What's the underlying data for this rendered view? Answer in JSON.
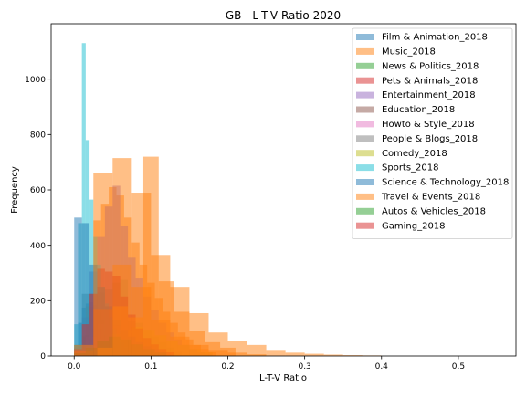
{
  "chart_data": {
    "type": "histogram",
    "title": "GB - L-T-V Ratio 2020",
    "xlabel": "L-T-V Ratio",
    "ylabel": "Frequency",
    "xlim": [
      -0.03,
      0.575
    ],
    "ylim": [
      0,
      1200
    ],
    "xticks": [
      "0.0",
      "0.1",
      "0.2",
      "0.3",
      "0.4",
      "0.5"
    ],
    "yticks": [
      "0",
      "200",
      "400",
      "600",
      "800",
      "1000"
    ],
    "grid": false,
    "legend_position": "top-right",
    "series": [
      {
        "name": "Film & Animation_2018",
        "color": "#1f77b4",
        "bins": [
          [
            0.0,
            0.005,
            25
          ],
          [
            0.005,
            0.01,
            120
          ],
          [
            0.01,
            0.015,
            175
          ],
          [
            0.015,
            0.02,
            190
          ],
          [
            0.02,
            0.025,
            195
          ],
          [
            0.025,
            0.03,
            185
          ],
          [
            0.03,
            0.035,
            160
          ],
          [
            0.035,
            0.04,
            130
          ],
          [
            0.04,
            0.045,
            100
          ],
          [
            0.045,
            0.05,
            75
          ],
          [
            0.05,
            0.055,
            50
          ],
          [
            0.055,
            0.06,
            35
          ],
          [
            0.06,
            0.065,
            22
          ],
          [
            0.065,
            0.07,
            12
          ]
        ]
      },
      {
        "name": "Music_2018",
        "color": "#ff7f0e",
        "bins": [
          [
            0.005,
            0.015,
            15
          ],
          [
            0.015,
            0.025,
            180
          ],
          [
            0.025,
            0.035,
            490
          ],
          [
            0.035,
            0.045,
            550
          ],
          [
            0.045,
            0.055,
            610
          ],
          [
            0.055,
            0.065,
            580
          ],
          [
            0.065,
            0.075,
            500
          ],
          [
            0.075,
            0.085,
            410
          ],
          [
            0.085,
            0.095,
            330
          ],
          [
            0.095,
            0.105,
            265
          ],
          [
            0.105,
            0.115,
            210
          ],
          [
            0.115,
            0.125,
            160
          ],
          [
            0.125,
            0.135,
            120
          ],
          [
            0.135,
            0.145,
            85
          ],
          [
            0.145,
            0.155,
            60
          ],
          [
            0.155,
            0.165,
            40
          ],
          [
            0.165,
            0.175,
            25
          ],
          [
            0.175,
            0.185,
            15
          ]
        ]
      },
      {
        "name": "News & Politics_2018",
        "color": "#2ca02c",
        "bins": [
          [
            0.0,
            0.01,
            40
          ],
          [
            0.01,
            0.02,
            75
          ],
          [
            0.02,
            0.03,
            60
          ],
          [
            0.03,
            0.04,
            40
          ],
          [
            0.04,
            0.05,
            25
          ],
          [
            0.05,
            0.06,
            12
          ],
          [
            0.06,
            0.07,
            5
          ]
        ]
      },
      {
        "name": "Pets & Animals_2018",
        "color": "#d62728",
        "bins": [
          [
            0.0,
            0.015,
            15
          ],
          [
            0.015,
            0.03,
            50
          ],
          [
            0.03,
            0.045,
            75
          ],
          [
            0.045,
            0.06,
            80
          ],
          [
            0.06,
            0.075,
            55
          ],
          [
            0.075,
            0.09,
            30
          ],
          [
            0.09,
            0.105,
            12
          ],
          [
            0.105,
            0.12,
            5
          ]
        ]
      },
      {
        "name": "Entertainment_2018",
        "color": "#9467bd",
        "bins": [
          [
            0.0,
            0.01,
            30
          ],
          [
            0.01,
            0.02,
            140
          ],
          [
            0.02,
            0.03,
            305
          ],
          [
            0.03,
            0.04,
            430
          ],
          [
            0.04,
            0.05,
            540
          ],
          [
            0.05,
            0.06,
            615
          ],
          [
            0.06,
            0.07,
            470
          ],
          [
            0.07,
            0.08,
            355
          ],
          [
            0.08,
            0.09,
            280
          ],
          [
            0.09,
            0.1,
            215
          ],
          [
            0.1,
            0.11,
            165
          ],
          [
            0.11,
            0.12,
            120
          ],
          [
            0.12,
            0.13,
            85
          ],
          [
            0.13,
            0.14,
            60
          ],
          [
            0.14,
            0.15,
            40
          ],
          [
            0.15,
            0.16,
            25
          ],
          [
            0.16,
            0.17,
            15
          ],
          [
            0.17,
            0.18,
            8
          ]
        ]
      },
      {
        "name": "Education_2018",
        "color": "#8c564b",
        "bins": [
          [
            0.0,
            0.012,
            20
          ],
          [
            0.012,
            0.024,
            70
          ],
          [
            0.024,
            0.036,
            100
          ],
          [
            0.036,
            0.048,
            95
          ],
          [
            0.048,
            0.06,
            70
          ],
          [
            0.06,
            0.072,
            45
          ],
          [
            0.072,
            0.084,
            25
          ],
          [
            0.084,
            0.096,
            12
          ],
          [
            0.096,
            0.108,
            5
          ]
        ]
      },
      {
        "name": "Howto & Style_2018",
        "color": "#e377c2",
        "bins": [
          [
            0.0,
            0.015,
            20
          ],
          [
            0.015,
            0.03,
            70
          ],
          [
            0.03,
            0.045,
            115
          ],
          [
            0.045,
            0.06,
            110
          ],
          [
            0.06,
            0.075,
            80
          ],
          [
            0.075,
            0.09,
            50
          ],
          [
            0.09,
            0.105,
            28
          ],
          [
            0.105,
            0.12,
            12
          ]
        ]
      },
      {
        "name": "People & Blogs_2018",
        "color": "#7f7f7f",
        "bins": [
          [
            0.0,
            0.01,
            40
          ],
          [
            0.01,
            0.02,
            225
          ],
          [
            0.02,
            0.03,
            225
          ],
          [
            0.03,
            0.04,
            230
          ],
          [
            0.04,
            0.05,
            240
          ],
          [
            0.05,
            0.06,
            265
          ],
          [
            0.06,
            0.07,
            275
          ],
          [
            0.07,
            0.08,
            125
          ],
          [
            0.08,
            0.09,
            120
          ],
          [
            0.09,
            0.1,
            95
          ],
          [
            0.1,
            0.11,
            70
          ],
          [
            0.11,
            0.12,
            50
          ],
          [
            0.12,
            0.13,
            30
          ],
          [
            0.13,
            0.14,
            18
          ]
        ]
      },
      {
        "name": "Comedy_2018",
        "color": "#bcbd22",
        "bins": [
          [
            0.0,
            0.015,
            15
          ],
          [
            0.015,
            0.03,
            35
          ],
          [
            0.03,
            0.045,
            60
          ],
          [
            0.045,
            0.06,
            80
          ],
          [
            0.06,
            0.075,
            95
          ],
          [
            0.075,
            0.09,
            105
          ],
          [
            0.09,
            0.105,
            95
          ],
          [
            0.105,
            0.12,
            75
          ],
          [
            0.12,
            0.135,
            55
          ],
          [
            0.135,
            0.15,
            40
          ],
          [
            0.15,
            0.165,
            25
          ],
          [
            0.165,
            0.18,
            15
          ]
        ]
      },
      {
        "name": "Sports_2018",
        "color": "#17becf",
        "bins": [
          [
            0.0,
            0.005,
            115
          ],
          [
            0.005,
            0.01,
            480
          ],
          [
            0.01,
            0.015,
            1130
          ],
          [
            0.015,
            0.02,
            780
          ],
          [
            0.02,
            0.025,
            565
          ],
          [
            0.025,
            0.03,
            430
          ],
          [
            0.03,
            0.035,
            330
          ],
          [
            0.035,
            0.04,
            250
          ],
          [
            0.04,
            0.045,
            190
          ],
          [
            0.045,
            0.05,
            140
          ],
          [
            0.05,
            0.055,
            100
          ],
          [
            0.055,
            0.06,
            70
          ],
          [
            0.06,
            0.065,
            50
          ],
          [
            0.065,
            0.07,
            32
          ],
          [
            0.07,
            0.075,
            20
          ],
          [
            0.075,
            0.08,
            12
          ]
        ]
      },
      {
        "name": "Science & Technology_2018",
        "color": "#1f77b4",
        "bins": [
          [
            0.0,
            0.01,
            500
          ],
          [
            0.01,
            0.02,
            480
          ],
          [
            0.02,
            0.03,
            330
          ],
          [
            0.03,
            0.04,
            250
          ],
          [
            0.04,
            0.05,
            180
          ],
          [
            0.05,
            0.06,
            130
          ],
          [
            0.06,
            0.07,
            95
          ],
          [
            0.07,
            0.08,
            70
          ],
          [
            0.08,
            0.09,
            50
          ],
          [
            0.09,
            0.1,
            35
          ],
          [
            0.1,
            0.11,
            25
          ],
          [
            0.11,
            0.12,
            15
          ]
        ]
      },
      {
        "name": "Travel & Events_2018",
        "color": "#ff7f0e",
        "bins": [
          [
            0.0,
            0.025,
            20
          ],
          [
            0.025,
            0.05,
            170
          ],
          [
            0.05,
            0.075,
            330
          ],
          [
            0.075,
            0.1,
            250
          ],
          [
            0.1,
            0.125,
            130
          ],
          [
            0.125,
            0.15,
            70
          ],
          [
            0.15,
            0.175,
            40
          ],
          [
            0.175,
            0.2,
            22
          ],
          [
            0.2,
            0.225,
            12
          ],
          [
            0.225,
            0.25,
            6
          ]
        ]
      },
      {
        "name": "Autos & Vehicles_2018",
        "color": "#2ca02c",
        "bins": [
          [
            0.0,
            0.015,
            10
          ],
          [
            0.015,
            0.03,
            30
          ],
          [
            0.03,
            0.045,
            55
          ],
          [
            0.045,
            0.06,
            70
          ],
          [
            0.06,
            0.075,
            60
          ],
          [
            0.075,
            0.09,
            42
          ],
          [
            0.09,
            0.105,
            25
          ],
          [
            0.105,
            0.12,
            12
          ]
        ]
      },
      {
        "name": "Gaming_2018",
        "color": "#d62728",
        "bins": [
          [
            0.0,
            0.01,
            25
          ],
          [
            0.01,
            0.02,
            115
          ],
          [
            0.02,
            0.03,
            225
          ],
          [
            0.03,
            0.04,
            315
          ],
          [
            0.04,
            0.05,
            305
          ],
          [
            0.05,
            0.06,
            290
          ],
          [
            0.06,
            0.07,
            215
          ],
          [
            0.07,
            0.08,
            150
          ],
          [
            0.08,
            0.09,
            100
          ],
          [
            0.09,
            0.1,
            65
          ],
          [
            0.1,
            0.11,
            42
          ],
          [
            0.11,
            0.12,
            25
          ],
          [
            0.12,
            0.13,
            15
          ]
        ]
      },
      {
        "name": "",
        "color": "#ff7f0e",
        "bins": [
          [
            0.03,
            0.05,
            30
          ],
          [
            0.05,
            0.07,
            180
          ],
          [
            0.07,
            0.09,
            140
          ],
          [
            0.09,
            0.11,
            720
          ],
          [
            0.11,
            0.13,
            270
          ],
          [
            0.13,
            0.15,
            160
          ],
          [
            0.15,
            0.17,
            90
          ],
          [
            0.17,
            0.19,
            50
          ],
          [
            0.19,
            0.21,
            30
          ]
        ]
      },
      {
        "name": "",
        "color": "#ff7f0e",
        "bins": [
          [
            0.0,
            0.025,
            40
          ],
          [
            0.025,
            0.05,
            660
          ],
          [
            0.05,
            0.075,
            715
          ],
          [
            0.075,
            0.1,
            590
          ],
          [
            0.1,
            0.125,
            365
          ],
          [
            0.125,
            0.15,
            250
          ],
          [
            0.15,
            0.175,
            155
          ],
          [
            0.175,
            0.2,
            85
          ],
          [
            0.2,
            0.225,
            55
          ],
          [
            0.225,
            0.25,
            40
          ],
          [
            0.25,
            0.275,
            22
          ],
          [
            0.275,
            0.3,
            12
          ],
          [
            0.3,
            0.325,
            8
          ],
          [
            0.325,
            0.35,
            5
          ],
          [
            0.35,
            0.375,
            3
          ],
          [
            0.375,
            0.4,
            2
          ]
        ]
      }
    ]
  }
}
